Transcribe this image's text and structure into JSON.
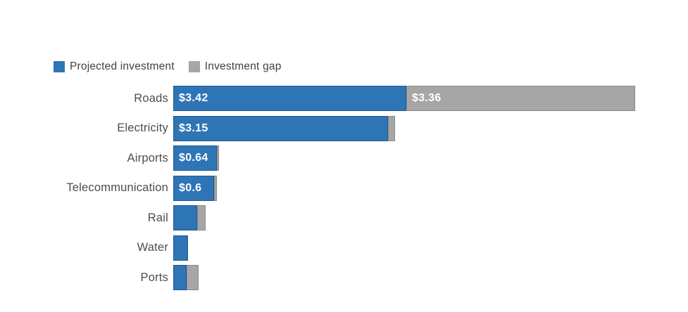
{
  "colors": {
    "background": "#FFFFFF",
    "projected": "#2E75B6",
    "gap": "#A6A6A6",
    "category_label_text": "#4D4D4D",
    "legend_text": "#414141",
    "value_label_text": "#FFFFFF"
  },
  "legend": {
    "position": "top-left"
  },
  "chart_data": {
    "type": "bar",
    "orientation": "horizontal",
    "stacked": true,
    "grid": false,
    "axes_visible": false,
    "legend_position": "top-left",
    "title": "",
    "xlabel": "",
    "ylabel": "",
    "xlim": [
      0,
      6.78
    ],
    "categories": [
      "Roads",
      "Electricity",
      "Airports",
      "Telecommunication",
      "Rail",
      "Water",
      "Ports"
    ],
    "series": [
      {
        "name": "Projected investment",
        "color": "#2E75B6",
        "values": [
          3.42,
          3.15,
          0.64,
          0.6,
          0.35,
          0.22,
          0.2
        ],
        "labels": [
          "$3.42",
          "$3.15",
          "$0.64",
          "$0.6",
          "",
          "",
          ""
        ]
      },
      {
        "name": "Investment gap",
        "color": "#A6A6A6",
        "values": [
          3.36,
          0.1,
          0.03,
          0.04,
          0.12,
          0,
          0.18
        ],
        "labels": [
          "$3.36",
          "",
          "",
          "",
          "",
          "",
          ""
        ]
      }
    ]
  }
}
